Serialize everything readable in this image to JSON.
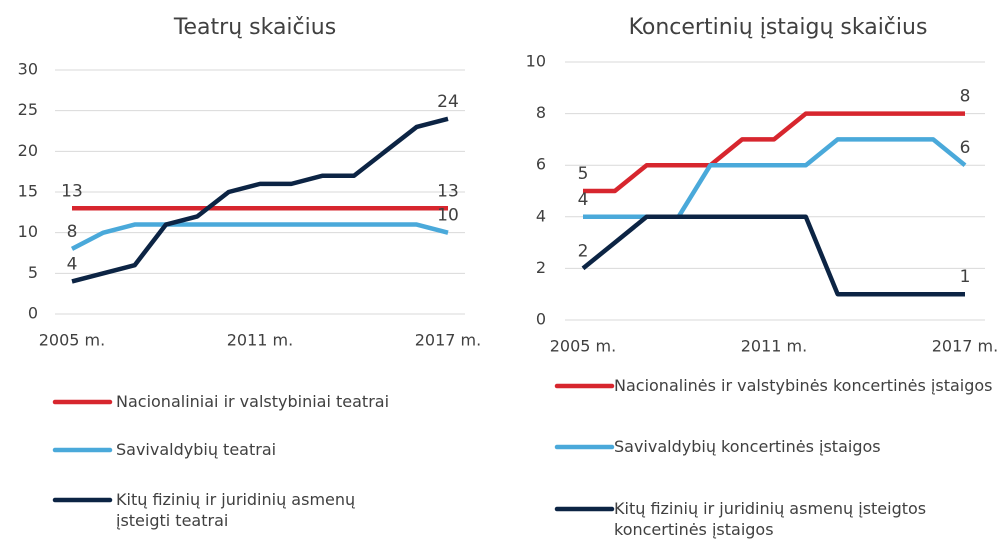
{
  "chart_data": [
    {
      "type": "line",
      "title": "Teatrų skaičius",
      "categories": [
        "2005 m.",
        null,
        null,
        null,
        null,
        null,
        "2011 m.",
        null,
        null,
        null,
        null,
        null,
        "2017 m."
      ],
      "series": [
        {
          "name": "Nacionaliniai ir valstybiniai teatrai",
          "color": "#d7262e",
          "values": [
            13,
            13,
            13,
            13,
            13,
            13,
            13,
            13,
            13,
            13,
            13,
            13,
            13
          ]
        },
        {
          "name": "Savivaldybių teatrai",
          "color": "#4aa9da",
          "values": [
            8,
            10,
            11,
            11,
            11,
            11,
            11,
            11,
            11,
            11,
            11,
            11,
            10
          ]
        },
        {
          "name": "Kitų fizinių ir juridinių asmenų įsteigti teatrai",
          "color": "#0c2444",
          "values": [
            4,
            5,
            6,
            11,
            12,
            15,
            16,
            16,
            17,
            17,
            20,
            23,
            24
          ]
        }
      ],
      "ylim": [
        0,
        30
      ],
      "yticks": [
        0,
        5,
        10,
        15,
        20,
        25,
        30
      ],
      "grid": true,
      "legend": "bottom"
    },
    {
      "type": "line",
      "title": "Koncertinių įstaigų skaičius",
      "categories": [
        "2005 m.",
        null,
        null,
        null,
        null,
        null,
        "2011 m.",
        null,
        null,
        null,
        null,
        null,
        "2017 m."
      ],
      "series": [
        {
          "name": "Nacionalinės ir valstybinės koncertinės įstaigos",
          "color": "#d7262e",
          "values": [
            5,
            5,
            6,
            6,
            6,
            7,
            7,
            8,
            8,
            8,
            8,
            8,
            8
          ]
        },
        {
          "name": "Savivaldybių koncertinės įstaigos",
          "color": "#4aa9da",
          "values": [
            4,
            4,
            4,
            4,
            6,
            6,
            6,
            6,
            7,
            7,
            7,
            7,
            6
          ]
        },
        {
          "name": "Kitų fizinių ir juridinių asmenų įsteigtos koncertinės įstaigos",
          "color": "#0c2444",
          "values": [
            2,
            3,
            4,
            4,
            4,
            4,
            4,
            4,
            1,
            1,
            1,
            1,
            1
          ]
        }
      ],
      "ylim": [
        0,
        10
      ],
      "yticks": [
        0,
        2,
        4,
        6,
        8,
        10
      ],
      "grid": true,
      "legend": "bottom"
    }
  ]
}
